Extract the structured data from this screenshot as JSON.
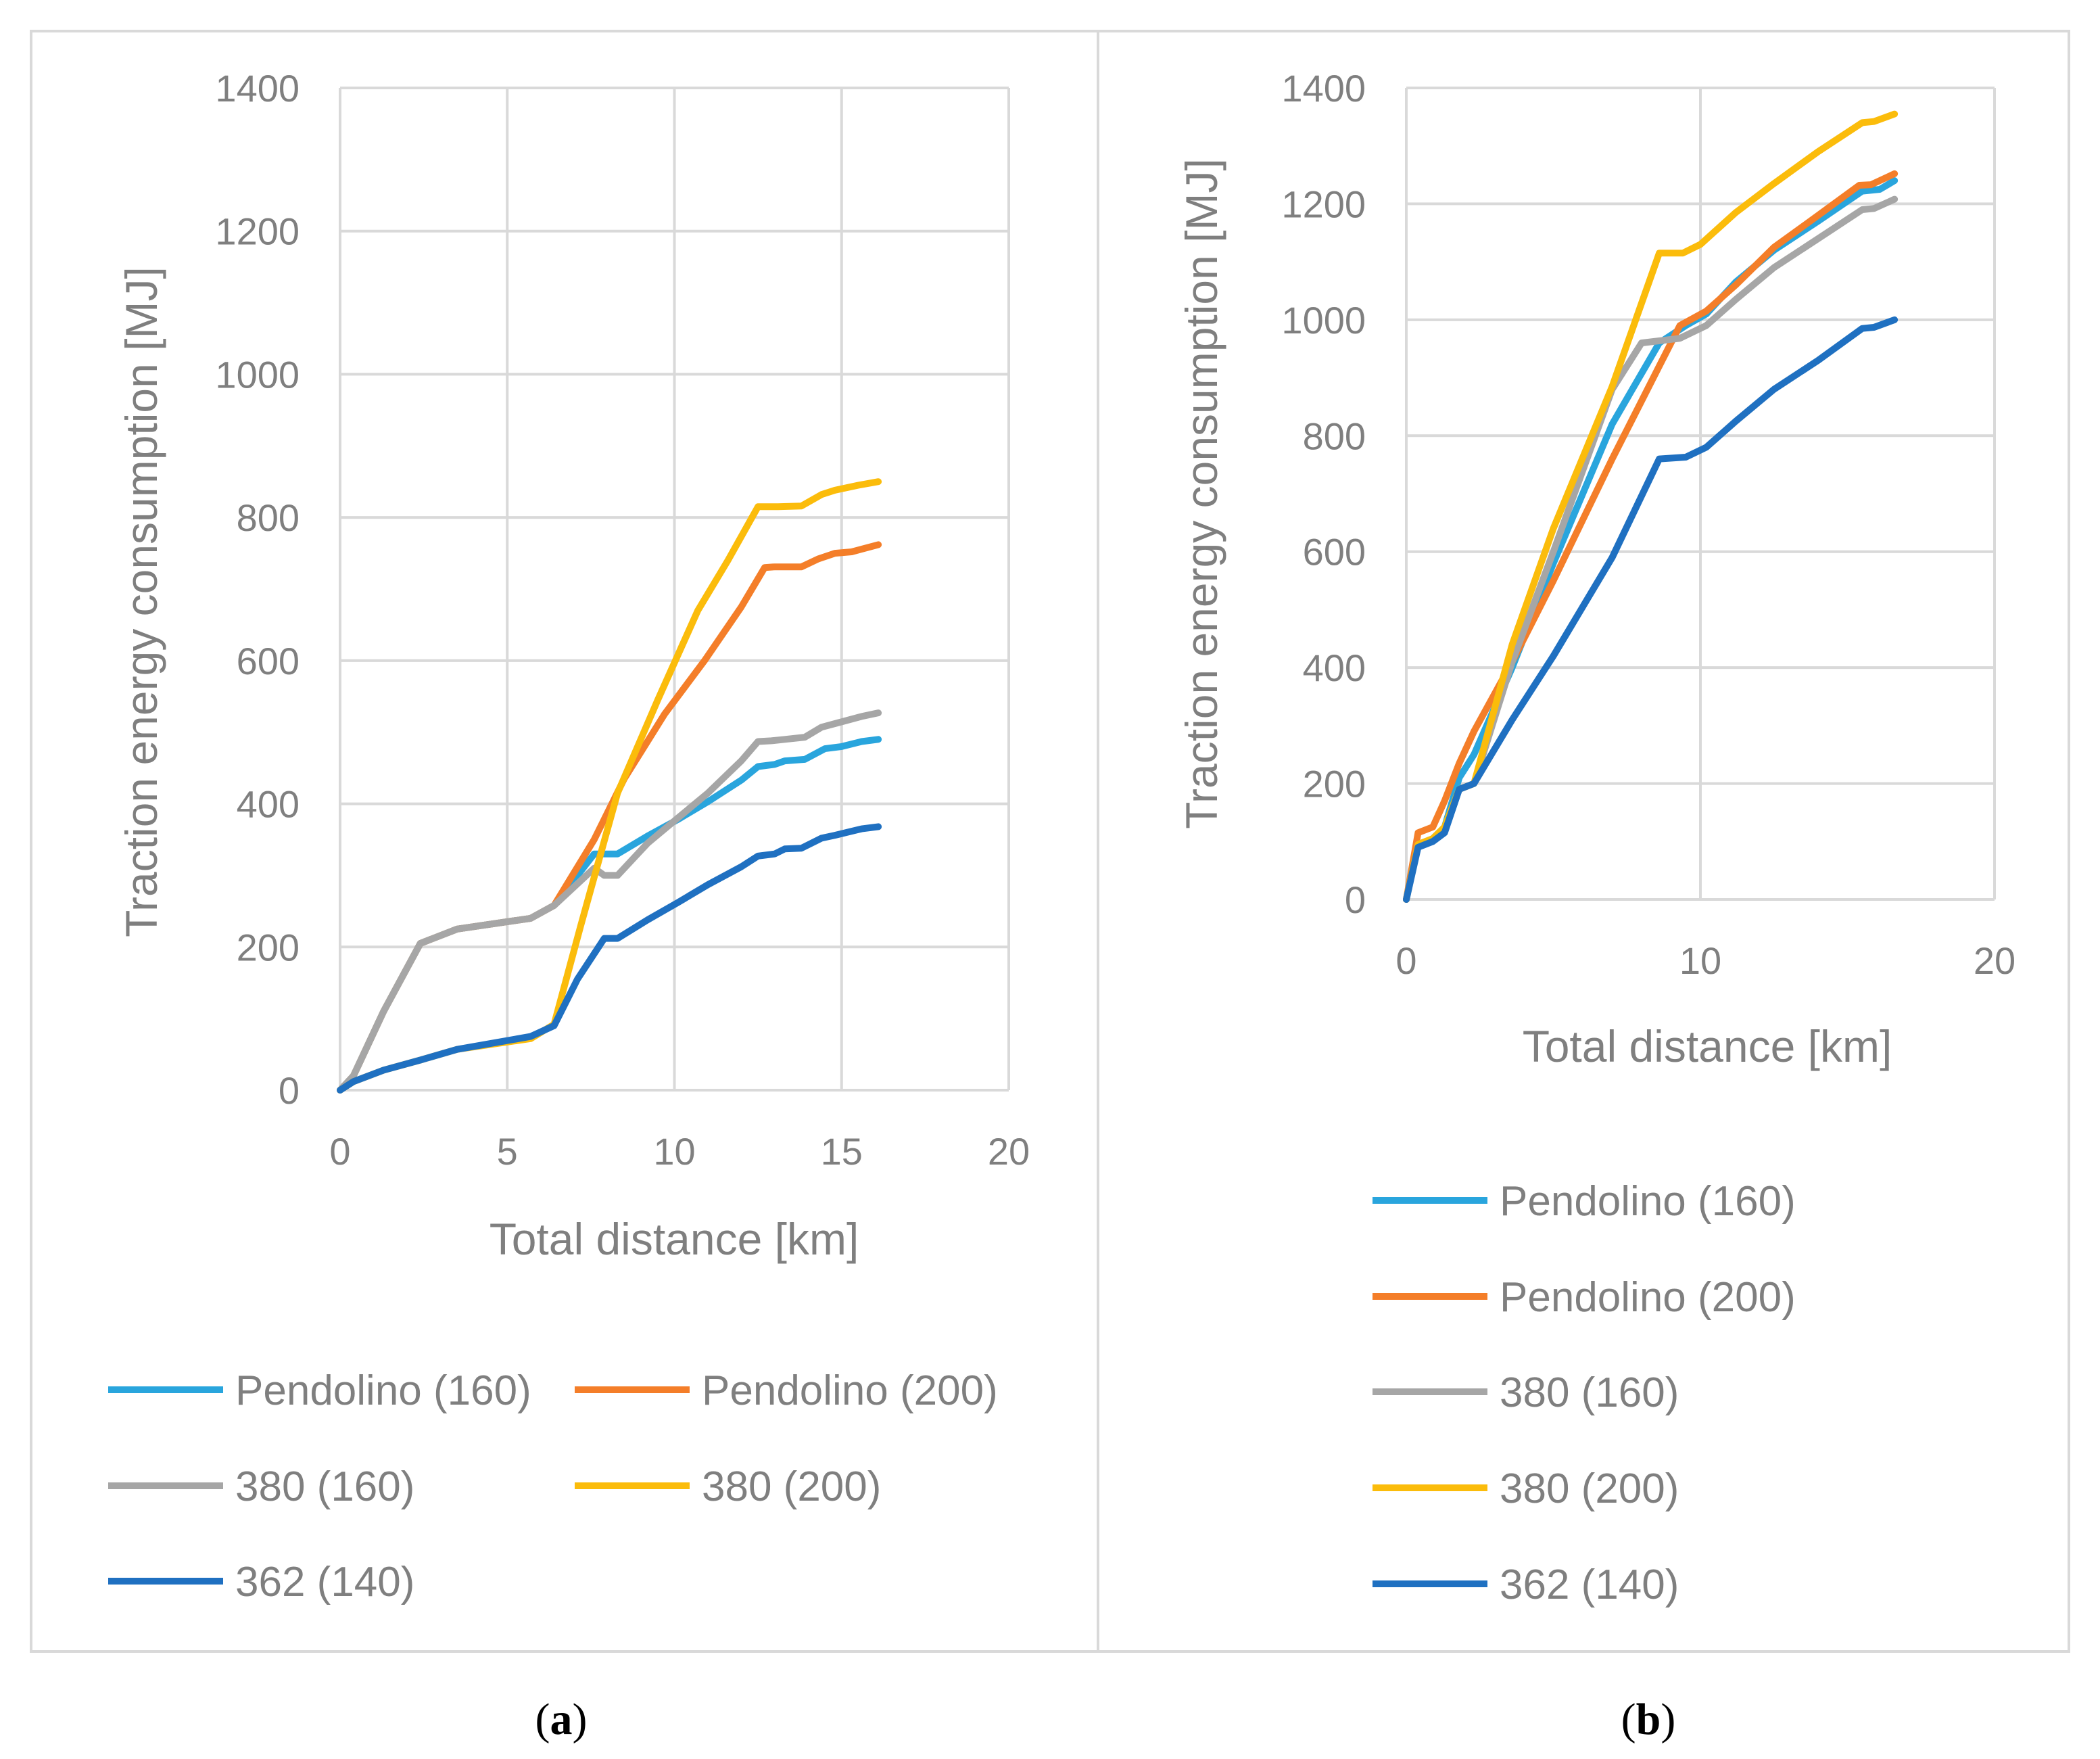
{
  "chart_data": [
    {
      "id": "a",
      "type": "line",
      "caption": "a",
      "xlabel": "Total distance [km]",
      "ylabel": "Traction energy consumption [MJ]",
      "xlim": [
        0,
        20
      ],
      "ylim": [
        0,
        1400
      ],
      "xticks": [
        0,
        5,
        10,
        15,
        20
      ],
      "yticks": [
        0,
        200,
        400,
        600,
        800,
        1000,
        1200,
        1400
      ],
      "grid": true,
      "legend_position": "bottom",
      "series": [
        {
          "name": "Pendolino (160)",
          "color": "#29A5DD",
          "x": [
            0,
            0.4,
            1.3,
            2.4,
            3.5,
            5.7,
            6.4,
            7.6,
            8.3,
            9.2,
            10.1,
            11.0,
            12.0,
            12.5,
            13.0,
            13.3,
            13.9,
            14.5,
            15.0,
            15.6,
            16.1
          ],
          "y": [
            0,
            20,
            110,
            205,
            225,
            240,
            258,
            330,
            330,
            355,
            378,
            403,
            433,
            452,
            455,
            460,
            462,
            477,
            480,
            487,
            490
          ]
        },
        {
          "name": "Pendolino (200)",
          "color": "#F47E29",
          "x": [
            0,
            0.4,
            1.3,
            2.4,
            3.5,
            5.7,
            6.4,
            7.6,
            8.5,
            9.7,
            10.9,
            12.0,
            12.7,
            13.0,
            13.8,
            14.3,
            14.8,
            15.3,
            16.1
          ],
          "y": [
            0,
            20,
            110,
            205,
            225,
            240,
            258,
            350,
            435,
            525,
            600,
            675,
            730,
            731,
            731,
            742,
            750,
            752,
            762
          ]
        },
        {
          "name": "380 (160)",
          "color": "#A6A6A6",
          "x": [
            0,
            0.4,
            1.3,
            2.4,
            3.5,
            5.7,
            6.4,
            7.6,
            7.9,
            8.3,
            9.2,
            10.1,
            11.0,
            12.0,
            12.5,
            12.9,
            13.3,
            13.9,
            14.4,
            14.8,
            15.6,
            16.1
          ],
          "y": [
            0,
            20,
            110,
            205,
            225,
            240,
            258,
            310,
            300,
            300,
            345,
            380,
            415,
            460,
            487,
            488,
            490,
            493,
            507,
            512,
            522,
            527
          ]
        },
        {
          "name": "380 (200)",
          "color": "#FBBC0B",
          "x": [
            0,
            0.4,
            1.3,
            2.4,
            3.5,
            5.7,
            6.4,
            7.2,
            8.3,
            9.5,
            10.7,
            11.6,
            12.5,
            13.1,
            13.8,
            14.4,
            14.8,
            15.5,
            16.1
          ],
          "y": [
            0,
            12,
            28,
            42,
            57,
            72,
            92,
            230,
            415,
            545,
            670,
            740,
            815,
            815,
            816,
            832,
            838,
            845,
            850
          ]
        },
        {
          "name": "362 (140)",
          "color": "#1F70C1",
          "x": [
            0,
            0.4,
            1.3,
            2.4,
            3.5,
            5.7,
            6.4,
            7.1,
            7.9,
            8.3,
            9.2,
            10.1,
            11.0,
            12.0,
            12.5,
            13.0,
            13.3,
            13.8,
            14.4,
            14.8,
            15.6,
            16.1
          ],
          "y": [
            0,
            12,
            28,
            42,
            57,
            75,
            90,
            155,
            212,
            212,
            238,
            262,
            287,
            312,
            327,
            330,
            337,
            338,
            352,
            356,
            365,
            368
          ]
        }
      ]
    },
    {
      "id": "b",
      "type": "line",
      "caption": "b",
      "xlabel": "Total distance [km]",
      "ylabel": "Traction energy consumption [MJ]",
      "xlim": [
        0,
        20
      ],
      "ylim": [
        0,
        1400
      ],
      "xticks": [
        0,
        10,
        20
      ],
      "yticks": [
        0,
        200,
        400,
        600,
        800,
        1000,
        1200,
        1400
      ],
      "grid": true,
      "legend_position": "bottom",
      "series": [
        {
          "name": "Pendolino (160)",
          "color": "#29A5DD",
          "x": [
            0,
            0.4,
            0.9,
            1.3,
            1.8,
            2.3,
            3.6,
            5.0,
            7.0,
            8.6,
            9.5,
            10.2,
            11.2,
            12.5,
            14.0,
            15.5,
            16.1,
            16.6
          ],
          "y": [
            0,
            95,
            105,
            125,
            210,
            250,
            400,
            580,
            820,
            960,
            990,
            1010,
            1065,
            1120,
            1170,
            1222,
            1225,
            1240
          ]
        },
        {
          "name": "Pendolino (200)",
          "color": "#F47E29",
          "x": [
            0,
            0.4,
            0.9,
            1.3,
            1.8,
            2.3,
            3.6,
            5.0,
            7.0,
            8.6,
            9.3,
            10.2,
            11.2,
            12.5,
            14.0,
            15.4,
            15.8,
            16.6
          ],
          "y": [
            0,
            115,
            125,
            170,
            235,
            290,
            410,
            550,
            760,
            920,
            990,
            1015,
            1060,
            1125,
            1180,
            1232,
            1233,
            1252
          ]
        },
        {
          "name": "380 (160)",
          "color": "#A6A6A6",
          "x": [
            0,
            0.4,
            0.9,
            1.3,
            1.8,
            2.3,
            3.6,
            5.0,
            7.0,
            8.0,
            9.3,
            10.2,
            11.2,
            12.5,
            14.0,
            15.5,
            15.9,
            16.6
          ],
          "y": [
            0,
            95,
            105,
            125,
            190,
            200,
            410,
            600,
            880,
            960,
            968,
            990,
            1035,
            1090,
            1140,
            1190,
            1192,
            1208
          ]
        },
        {
          "name": "380 (200)",
          "color": "#FBBC0B",
          "x": [
            0,
            0.4,
            0.9,
            1.3,
            1.8,
            2.3,
            3.6,
            5.0,
            7.0,
            8.6,
            9.4,
            10.0,
            11.2,
            12.5,
            14.0,
            15.5,
            15.9,
            16.6
          ],
          "y": [
            0,
            95,
            105,
            125,
            190,
            200,
            440,
            640,
            885,
            1115,
            1115,
            1130,
            1185,
            1235,
            1290,
            1340,
            1342,
            1355
          ]
        },
        {
          "name": "362 (140)",
          "color": "#1F70C1",
          "x": [
            0,
            0.4,
            0.9,
            1.3,
            1.8,
            2.3,
            3.6,
            5.0,
            7.0,
            8.6,
            9.5,
            10.2,
            11.2,
            12.5,
            14.0,
            15.5,
            15.9,
            16.6
          ],
          "y": [
            0,
            90,
            100,
            115,
            190,
            200,
            310,
            420,
            590,
            760,
            763,
            780,
            825,
            880,
            930,
            985,
            987,
            1000
          ]
        }
      ]
    }
  ]
}
